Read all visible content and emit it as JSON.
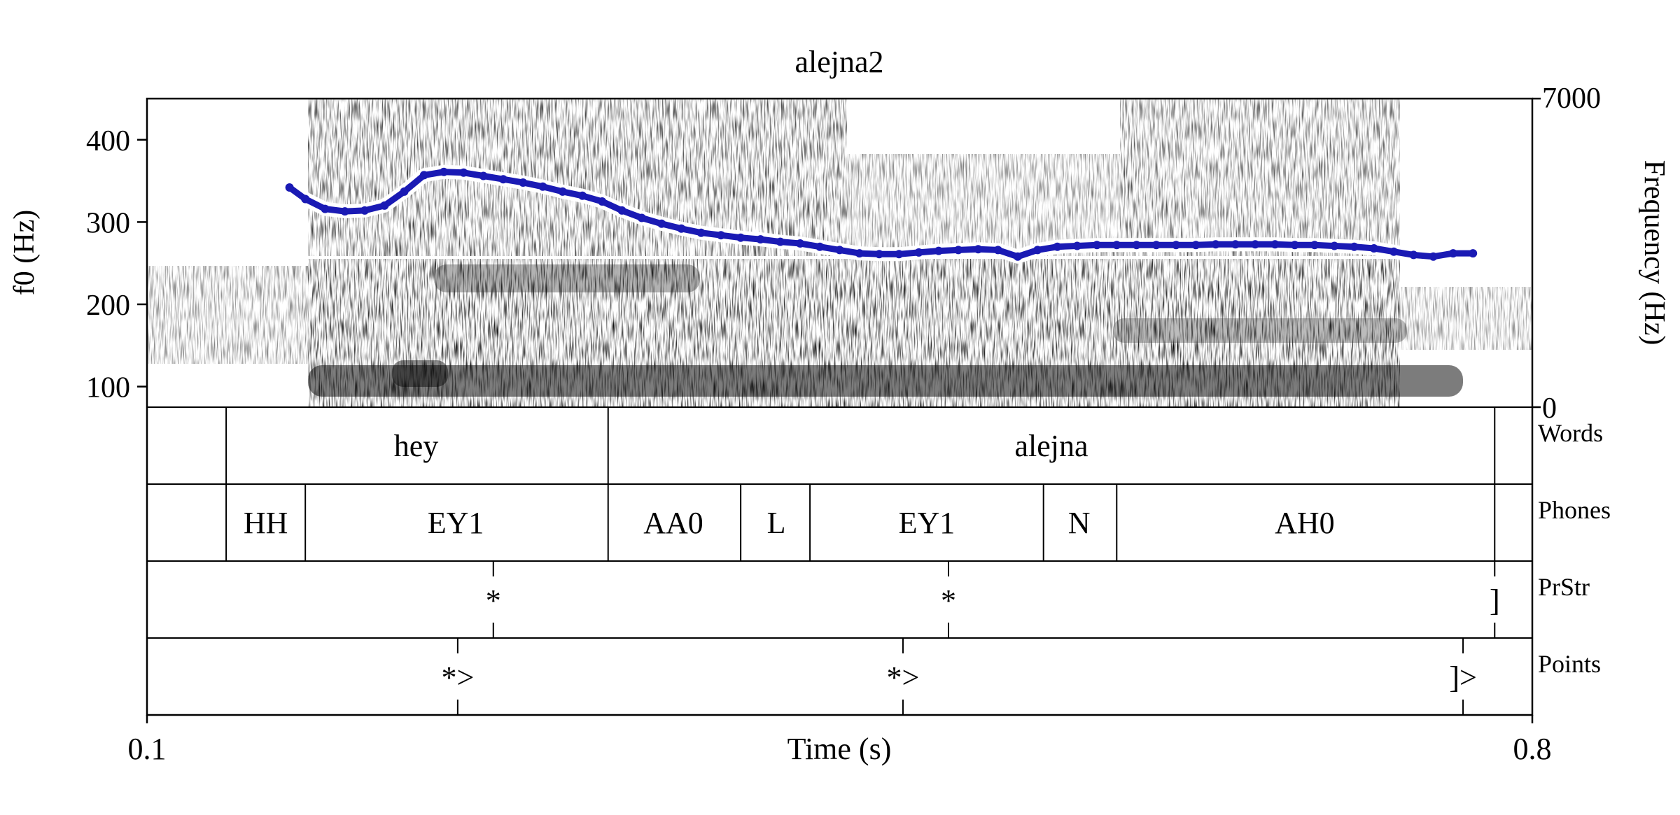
{
  "chart_data": {
    "type": "line",
    "title": "alejna2",
    "xlabel": "Time (s)",
    "ylabel_left": "f0 (Hz)",
    "ylabel_right": "Frequency (Hz)",
    "xlim": [
      0.1,
      0.8
    ],
    "x_tick_labels": [
      "0.1",
      "0.8"
    ],
    "f0_ylim": [
      75,
      450
    ],
    "f0_ticks": [
      100,
      200,
      300,
      400
    ],
    "freq_ylim": [
      0,
      7000
    ],
    "freq_tick_labels": [
      "7000",
      "0"
    ],
    "series": [
      {
        "color": "#1a1ab4",
        "x": [
          0.172,
          0.18,
          0.19,
          0.2,
          0.21,
          0.22,
          0.23,
          0.24,
          0.25,
          0.26,
          0.27,
          0.28,
          0.29,
          0.3,
          0.31,
          0.32,
          0.33,
          0.34,
          0.35,
          0.36,
          0.37,
          0.38,
          0.39,
          0.4,
          0.41,
          0.42,
          0.43,
          0.44,
          0.45,
          0.46,
          0.47,
          0.48,
          0.49,
          0.5,
          0.51,
          0.52,
          0.53,
          0.54,
          0.55,
          0.56,
          0.57,
          0.58,
          0.59,
          0.6,
          0.61,
          0.62,
          0.63,
          0.64,
          0.65,
          0.66,
          0.67,
          0.68,
          0.69,
          0.7,
          0.71,
          0.72,
          0.73,
          0.74,
          0.75,
          0.76,
          0.77
        ],
        "y": [
          342,
          328,
          316,
          313,
          314,
          320,
          337,
          357,
          361,
          360,
          356,
          352,
          348,
          343,
          337,
          332,
          325,
          314,
          305,
          298,
          292,
          287,
          284,
          281,
          279,
          276,
          274,
          270,
          266,
          262,
          261,
          261,
          263,
          265,
          266,
          267,
          266,
          258,
          266,
          270,
          271,
          272,
          272,
          272,
          272,
          272,
          272,
          273,
          273,
          273,
          273,
          272,
          272,
          271,
          270,
          268,
          264,
          260,
          258,
          262,
          262
        ]
      }
    ],
    "tiers": [
      {
        "name": "Words",
        "type": "interval",
        "boundaries": [
          0.14,
          0.333,
          0.781
        ],
        "labels": [
          {
            "text": "hey",
            "x": 0.236
          },
          {
            "text": "alejna",
            "x": 0.557
          }
        ]
      },
      {
        "name": "Phones",
        "type": "interval",
        "boundaries": [
          0.14,
          0.18,
          0.333,
          0.4,
          0.435,
          0.553,
          0.59,
          0.781
        ],
        "labels": [
          {
            "text": "HH",
            "x": 0.16
          },
          {
            "text": "EY1",
            "x": 0.256
          },
          {
            "text": "AA0",
            "x": 0.366
          },
          {
            "text": "L",
            "x": 0.418
          },
          {
            "text": "EY1",
            "x": 0.494
          },
          {
            "text": "N",
            "x": 0.571
          },
          {
            "text": "AH0",
            "x": 0.685
          }
        ]
      },
      {
        "name": "PrStr",
        "type": "point",
        "points": [
          {
            "text": "*",
            "x": 0.275
          },
          {
            "text": "*",
            "x": 0.505
          },
          {
            "text": "]",
            "x": 0.781
          }
        ]
      },
      {
        "name": "Points",
        "type": "point",
        "points": [
          {
            "text": "*>",
            "x": 0.257
          },
          {
            "text": "*>",
            "x": 0.482
          },
          {
            "text": "]>",
            "x": 0.765
          }
        ]
      }
    ]
  }
}
